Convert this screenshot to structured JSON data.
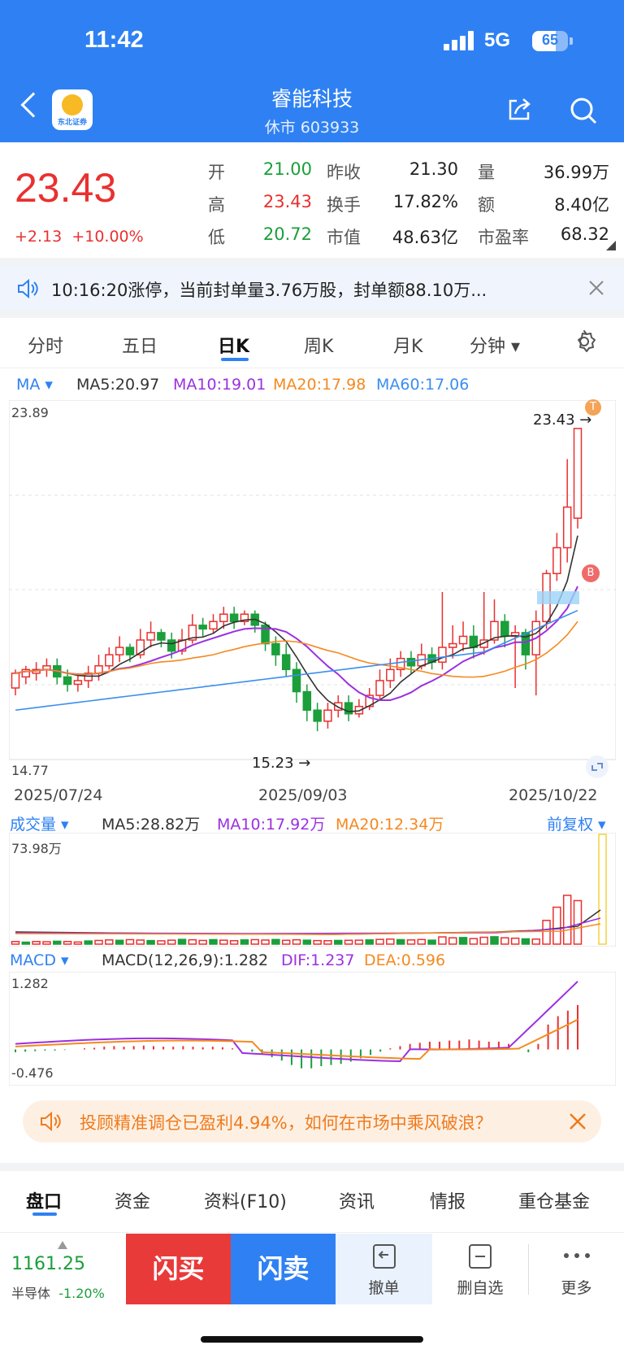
{
  "status": {
    "time": "11:42",
    "network": "5G",
    "battery": "65",
    "battery_level": 0.65
  },
  "header": {
    "title": "睿能科技",
    "subtitle": "休市 603933",
    "logo_text": "东北证券"
  },
  "quote": {
    "price": "23.43",
    "change": "+2.13",
    "change_pct": "+10.00%",
    "rows": [
      {
        "l1": "开",
        "v1": "21.00",
        "l2": "昨收",
        "v2": "21.30",
        "l3": "量",
        "v3": "36.99万"
      },
      {
        "l1": "高",
        "v1": "23.43",
        "l2": "换手",
        "v2": "17.82%",
        "l3": "额",
        "v3": "8.40亿"
      },
      {
        "l1": "低",
        "v1": "20.72",
        "l2": "市值",
        "v2": "48.63亿",
        "l3": "市盈率",
        "v3": "68.32"
      }
    ]
  },
  "notice": {
    "text": "10:16:20涨停，当前封单量3.76万股，封单额88.10万..."
  },
  "tabs": [
    "分时",
    "五日",
    "日K",
    "周K",
    "月K",
    "分钟 ▾"
  ],
  "active_tab": "日K",
  "ma": {
    "label": "MA ▾",
    "ma5": "MA5:20.97",
    "ma10": "MA10:19.01",
    "ma20": "MA20:17.98",
    "ma60": "MA60:17.06"
  },
  "kchart": {
    "ymax": "23.89",
    "ymin": "14.77",
    "high_label": "23.43 →",
    "low_label": "15.23 →",
    "dates": [
      "2025/07/24",
      "2025/09/03",
      "2025/10/22"
    ],
    "marker_t": "T",
    "marker_b": "B"
  },
  "vol": {
    "label": "成交量 ▾",
    "ma5": "MA5:28.82万",
    "ma10": "MA10:17.92万",
    "ma20": "MA20:12.34万",
    "right": "前复权 ▾",
    "ymax": "73.98万"
  },
  "macd": {
    "label": "MACD ▾",
    "params": "MACD(12,26,9):1.282",
    "dif": "DIF:1.237",
    "dea": "DEA:0.596",
    "ymax": "1.282",
    "ymin": "-0.476"
  },
  "banner": {
    "text": "投顾精准调仓已盈利4.94%，如何在市场中乘风破浪？"
  },
  "bottom_tabs": [
    "盘口",
    "资金",
    "资料(F10)",
    "资讯",
    "情报",
    "重仓基金"
  ],
  "footer": {
    "index_value": "1161.25",
    "index_name": "半导体",
    "index_change": "-1.20%",
    "buy": "闪买",
    "sell": "闪卖",
    "cancel": "撤单",
    "remove": "删自选",
    "more": "更多"
  },
  "colors": {
    "up": "#e93030",
    "down": "#1a9f3a",
    "brand": "#2f81f3",
    "ma5": "#333333",
    "ma10": "#9b30e0",
    "ma20": "#f5891f",
    "ma60": "#3b8ef0"
  }
}
